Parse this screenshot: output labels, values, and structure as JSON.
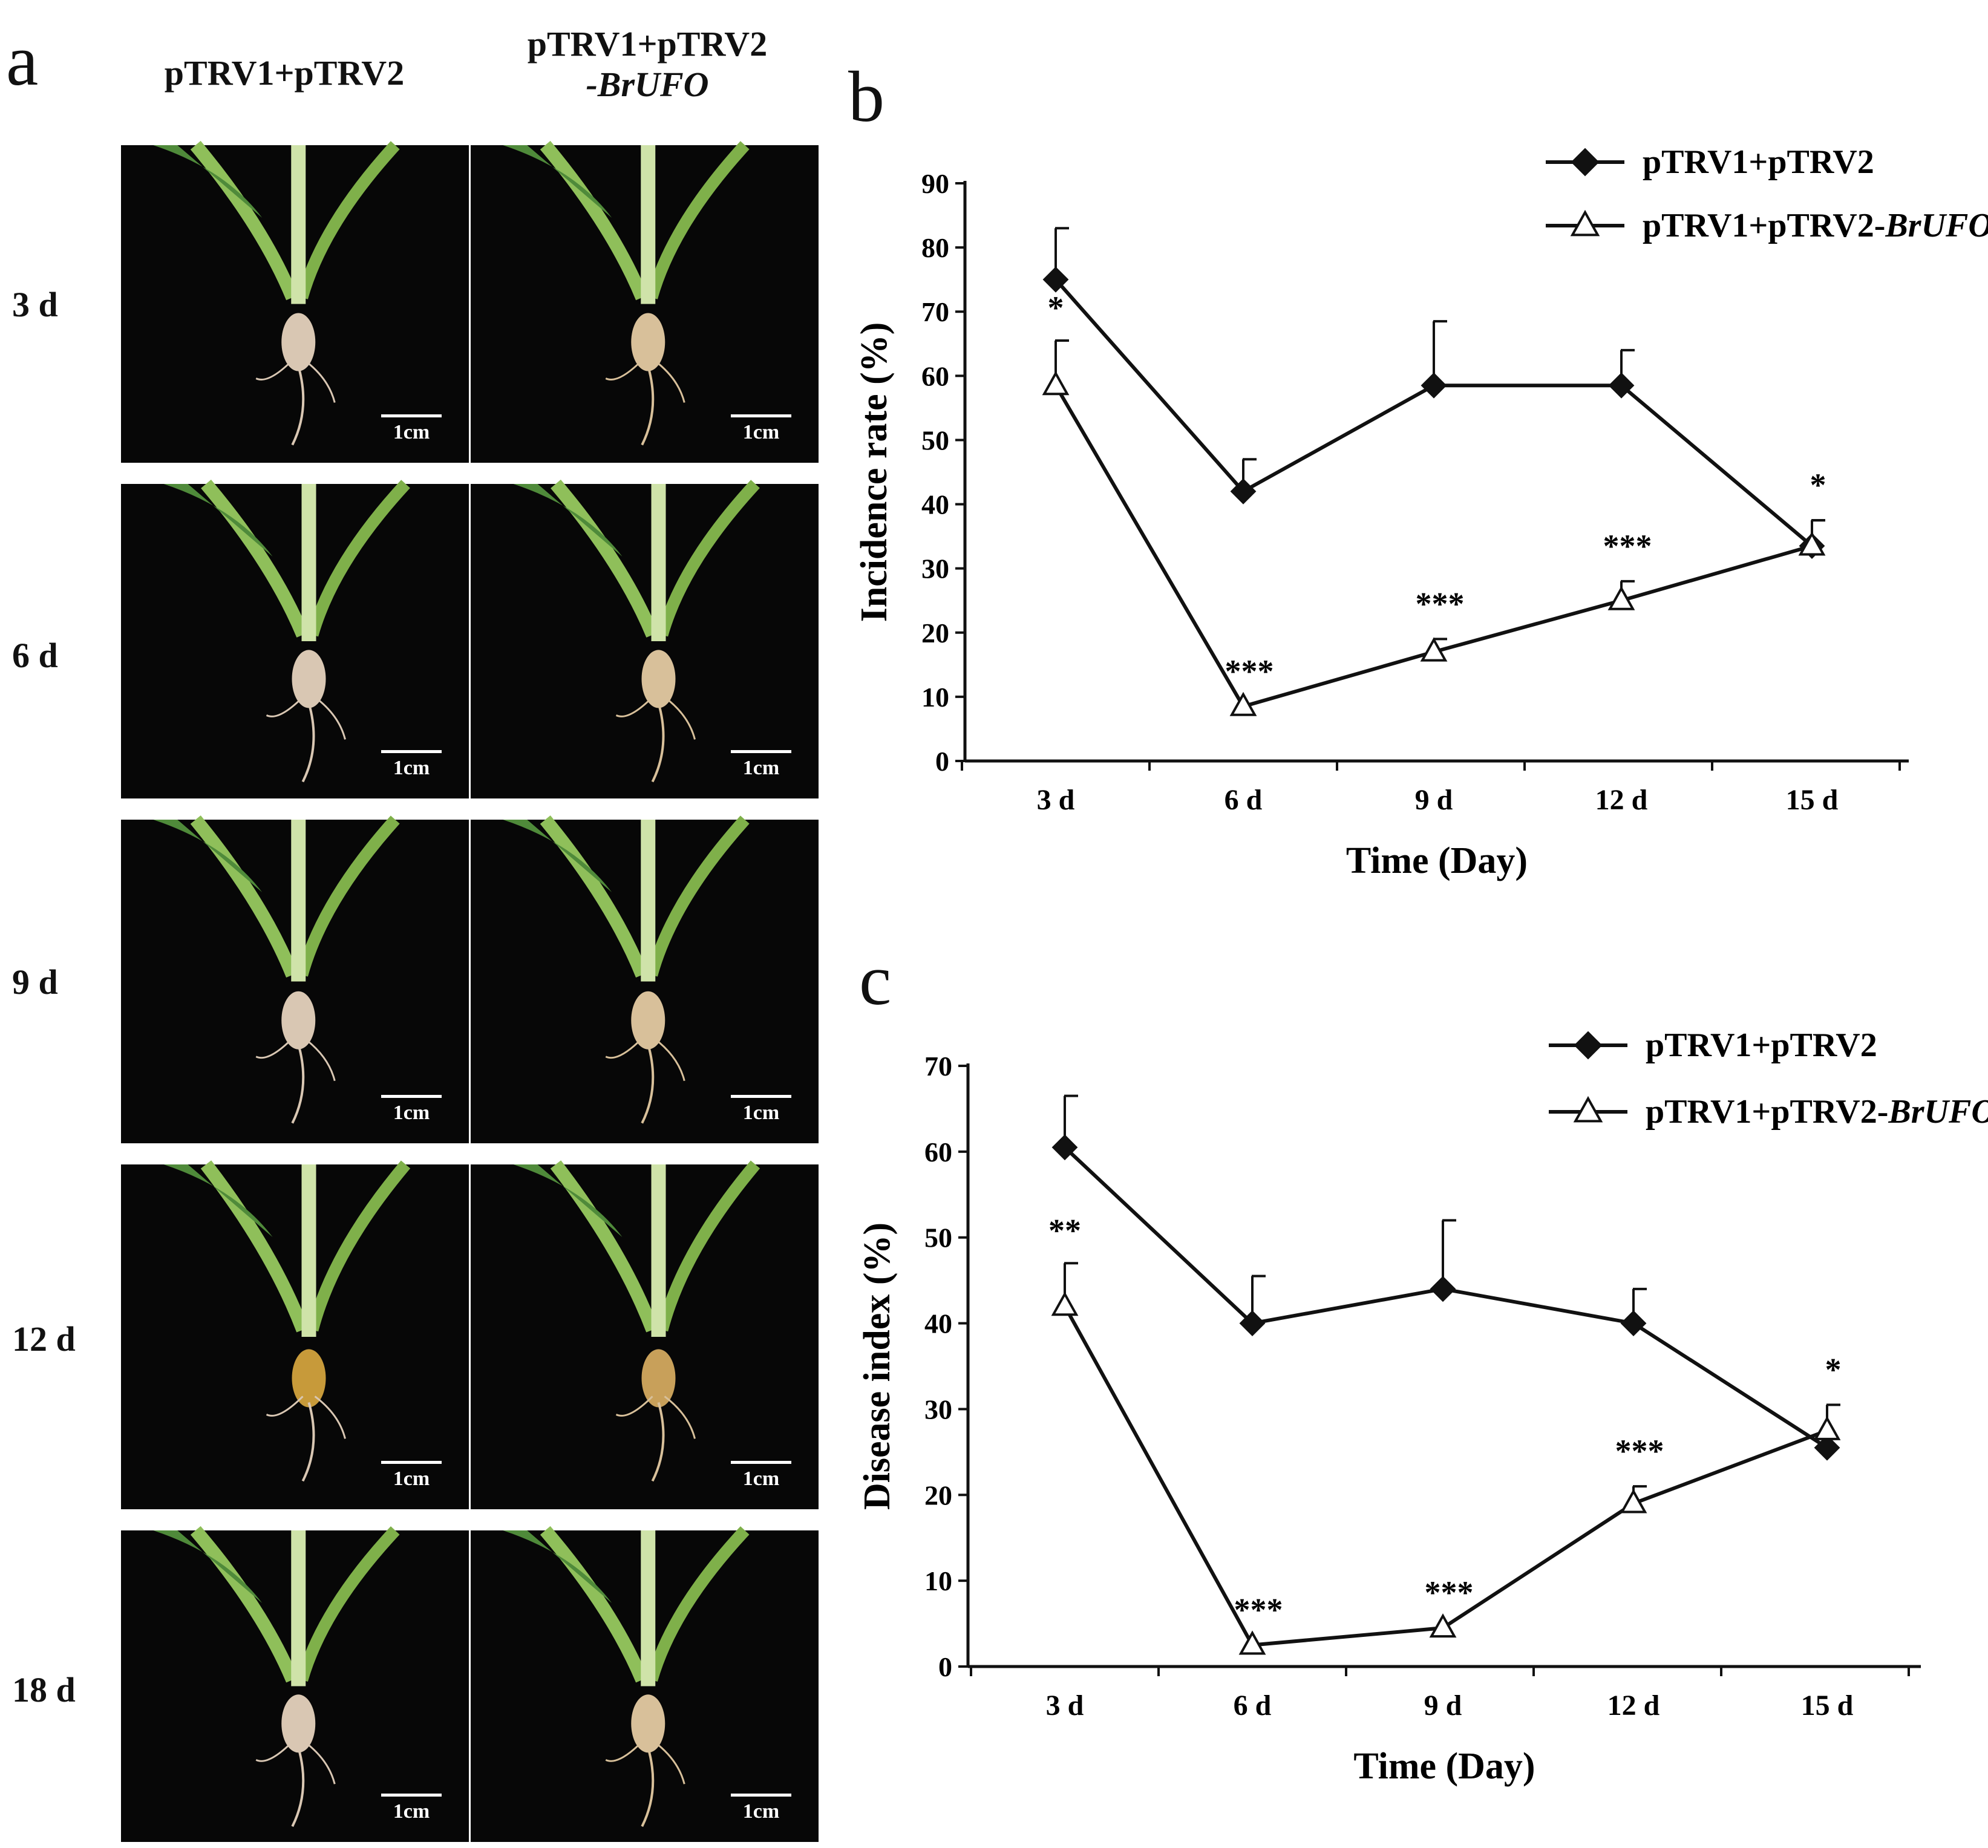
{
  "panels": {
    "a": "a",
    "b": "b",
    "c": "c"
  },
  "photo_grid": {
    "columns": [
      {
        "line1": "pTRV1+pTRV2",
        "line2": ""
      },
      {
        "line1": "pTRV1+pTRV2",
        "line2": "-BrUFO"
      }
    ],
    "rows": [
      "3 d",
      "6 d",
      "9 d",
      "12 d",
      "18 d"
    ],
    "scale_label": "1cm"
  },
  "chart_data": [
    {
      "type": "line",
      "panel": "b",
      "xlabel": "Time (Day)",
      "ylabel": "Incidence rate (%)",
      "categories": [
        "3 d",
        "6 d",
        "9 d",
        "12 d",
        "15 d"
      ],
      "ylim": [
        0,
        90
      ],
      "yticks": [
        0,
        10,
        20,
        30,
        40,
        50,
        60,
        70,
        80,
        90
      ],
      "legend_position": "top-right",
      "series": [
        {
          "name": "pTRV1+pTRV2",
          "marker": "filled-diamond",
          "values": [
            75,
            42,
            58.5,
            58.5,
            33.5
          ],
          "error": [
            8,
            5,
            10,
            5.5,
            4
          ]
        },
        {
          "name": "pTRV1+pTRV2-BrUFO",
          "name_plain": "pTRV1+pTRV2-",
          "name_italic": "BrUFO",
          "marker": "open-triangle",
          "values": [
            58.5,
            8.5,
            17,
            25,
            33.5
          ],
          "error": [
            7,
            0,
            2,
            3,
            4
          ]
        }
      ],
      "significance": [
        "*",
        "***",
        "***",
        "***",
        "*"
      ]
    },
    {
      "type": "line",
      "panel": "c",
      "xlabel": "Time (Day)",
      "ylabel": "Disease index (%)",
      "categories": [
        "3 d",
        "6 d",
        "9 d",
        "12 d",
        "15 d"
      ],
      "ylim": [
        0,
        70
      ],
      "yticks": [
        0,
        10,
        20,
        30,
        40,
        50,
        60,
        70
      ],
      "legend_position": "top-right",
      "series": [
        {
          "name": "pTRV1+pTRV2",
          "marker": "filled-diamond",
          "values": [
            60.5,
            40,
            44,
            40,
            25.5
          ],
          "error": [
            6,
            5.5,
            8,
            4,
            0
          ]
        },
        {
          "name": "pTRV1+pTRV2-BrUFO",
          "name_plain": "pTRV1+pTRV2-",
          "name_italic": "BrUFO",
          "marker": "open-triangle",
          "values": [
            42,
            2.5,
            4.5,
            19,
            27.5
          ],
          "error": [
            5,
            0,
            0,
            2,
            3
          ]
        }
      ],
      "significance": [
        "**",
        "***",
        "***",
        "***",
        "*"
      ]
    }
  ]
}
